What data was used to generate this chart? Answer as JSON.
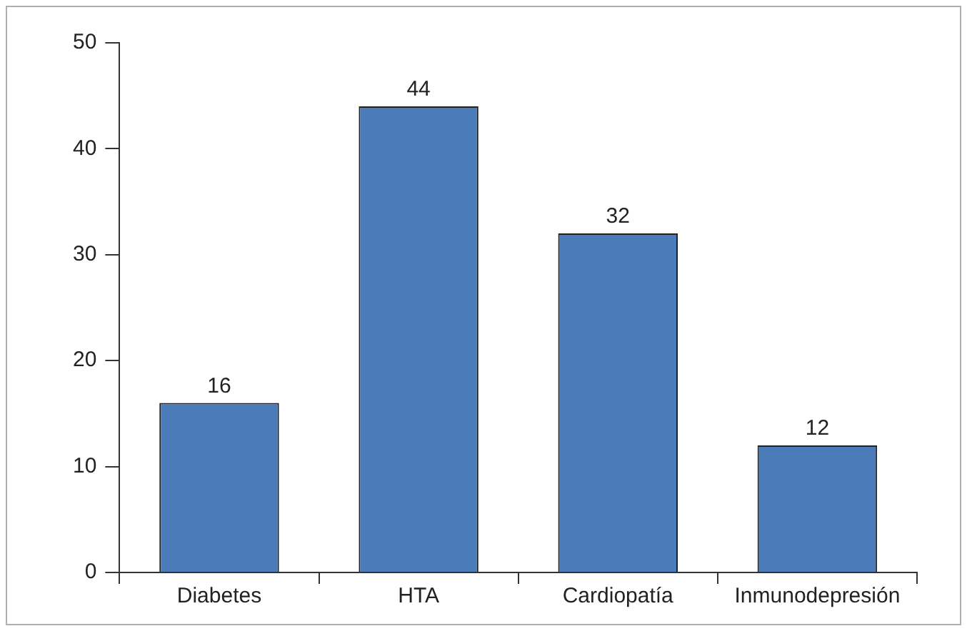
{
  "chart_data": {
    "type": "bar",
    "categories": [
      "Diabetes",
      "HTA",
      "Cardiopatía",
      "Inmunodepresión"
    ],
    "values": [
      16,
      44,
      32,
      12
    ],
    "color": "#4a7cba",
    "ylim": [
      0,
      50
    ],
    "yticks": [
      0,
      10,
      20,
      30,
      40,
      50
    ],
    "grid": false,
    "legend": false,
    "data_labels": true
  }
}
